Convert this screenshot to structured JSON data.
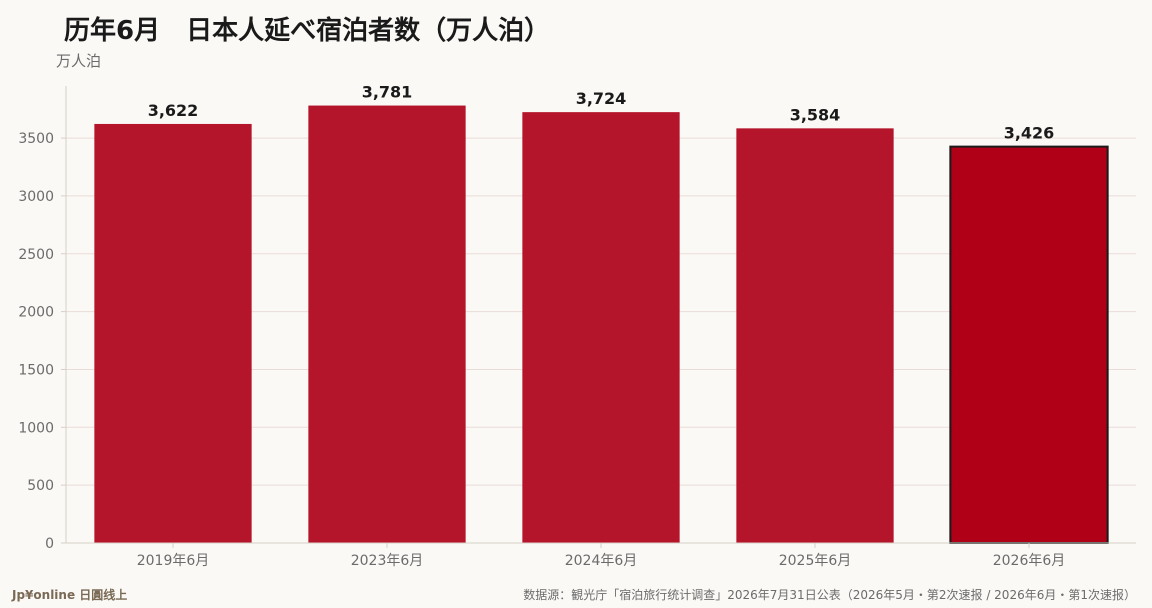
{
  "chart_data": {
    "type": "bar",
    "title": "历年6月　日本人延べ宿泊者数（万人泊）",
    "ylabel": "万人泊",
    "categories": [
      "2019年6月",
      "2023年6月",
      "2024年6月",
      "2025年6月",
      "2026年6月"
    ],
    "values": [
      3622,
      3781,
      3724,
      3584,
      3426
    ],
    "value_labels": [
      "3,622",
      "3,781",
      "3,724",
      "3,584",
      "3,426"
    ],
    "highlight_index": 4,
    "ylim": [
      0,
      3950
    ],
    "yticks": [
      0,
      500,
      1000,
      1500,
      2000,
      2500,
      3000,
      3500
    ],
    "grid": true,
    "colors": {
      "bar": "#b5152b",
      "highlight": "#b00018",
      "highlight_stroke": "#1a1a1a",
      "grid": "#eadcd8",
      "axis": "#d6cfc5",
      "tick_text": "#6b6b6b",
      "value_text": "#1a1a1a"
    }
  },
  "footer": {
    "brand": "Jp¥online 日圓线上",
    "source": "数据源：観光庁「宿泊旅行统计调查」2026年7月31日公表（2026年5月・第2次速报 / 2026年6月・第1次速报）"
  }
}
